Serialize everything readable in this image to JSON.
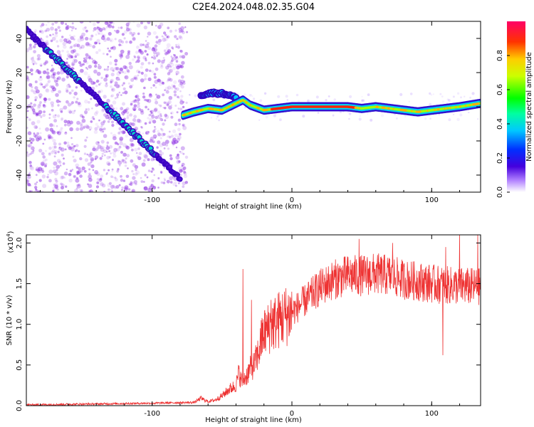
{
  "title": "C2E4.2024.048.02.35.G04",
  "colors": {
    "snr_line": "#ee3333",
    "trace_core": "#ff2200",
    "scatter": "#8a2be2"
  },
  "chart_data": [
    {
      "type": "heatmap",
      "xlabel": "Height of straight line (km)",
      "ylabel": "Frequency (Hz)",
      "xlim": [
        -190,
        135
      ],
      "ylim": [
        -50,
        50
      ],
      "x_ticks": [
        -100,
        0,
        100
      ],
      "y_ticks": [
        -40,
        -20,
        0,
        20,
        40
      ],
      "colorbar": {
        "label": "Normalized spectral amplitude",
        "range": [
          0,
          1
        ],
        "ticks": [
          "0.0",
          "0.2",
          "0.4",
          "0.6",
          "0.8"
        ],
        "colormap": "rainbow"
      },
      "features": {
        "scatter_region_x": [
          -190,
          -75
        ],
        "diagonal_trace": {
          "x": [
            -190,
            -80
          ],
          "y": [
            45,
            -42
          ]
        },
        "bright_trace": {
          "x": [
            -78,
            -70,
            -60,
            -50,
            -40,
            -35,
            -30,
            -20,
            -10,
            0,
            20,
            40,
            50,
            60,
            70,
            80,
            90,
            100,
            110,
            120,
            135
          ],
          "y": [
            -5,
            -3,
            -1,
            -2,
            2,
            4,
            1,
            -2,
            -1,
            0,
            0,
            0,
            -1,
            0,
            -1,
            -2,
            -3,
            -2,
            -1,
            0,
            2
          ]
        },
        "upper_branch": {
          "x": [
            -65,
            -58,
            -52,
            -45,
            -40
          ],
          "y": [
            7,
            8,
            8,
            7,
            5
          ]
        }
      }
    },
    {
      "type": "line",
      "xlabel": "Height of straight line (km)",
      "ylabel": "SNR (10 * v/v)",
      "y_multiplier": "(x10",
      "y_exponent": "4",
      "xlim": [
        -190,
        135
      ],
      "ylim": [
        0,
        21000
      ],
      "x_ticks": [
        -100,
        0,
        100
      ],
      "y_ticks": [
        "0.0",
        "0.5",
        "1.0",
        "1.5",
        "2.0"
      ],
      "y_tick_values": [
        0,
        5000,
        10000,
        15000,
        20000
      ],
      "envelope": {
        "x": [
          -190,
          -100,
          -70,
          -65,
          -60,
          -55,
          -50,
          -45,
          -40,
          -38,
          -36,
          -33,
          -30,
          -27,
          -24,
          -20,
          -10,
          0,
          10,
          20,
          30,
          40,
          50,
          60,
          70,
          80,
          90,
          100,
          110,
          120,
          135
        ],
        "y": [
          100,
          300,
          400,
          900,
          500,
          700,
          1200,
          2000,
          2500,
          4000,
          3000,
          3500,
          4500,
          5000,
          6500,
          9000,
          10500,
          11500,
          13000,
          14500,
          15500,
          16000,
          16000,
          16200,
          16000,
          15500,
          15300,
          15000,
          14800,
          14700,
          14600
        ]
      },
      "spikes": [
        {
          "x": -35,
          "y": 16800
        },
        {
          "x": -29,
          "y": 13000
        },
        {
          "x": -22,
          "y": 10500
        },
        {
          "x": -15,
          "y": 13000
        },
        {
          "x": 48,
          "y": 20500
        },
        {
          "x": 72,
          "y": 20000
        },
        {
          "x": 110,
          "y": 19500
        },
        {
          "x": 120,
          "y": 21000
        },
        {
          "x": 133,
          "y": 21000
        },
        {
          "x": 108,
          "y": 6200
        }
      ]
    }
  ]
}
